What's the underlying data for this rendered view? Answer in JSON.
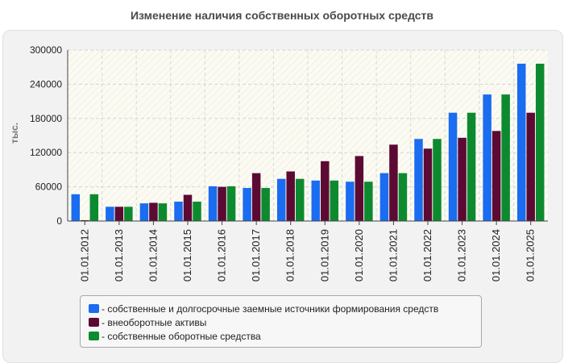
{
  "chart_data": {
    "type": "bar",
    "title": "Изменение наличия собственных оборотных средств",
    "ylabel": "тыс.",
    "xlabel": "",
    "ylim": [
      0,
      300000
    ],
    "yticks": [
      0,
      60000,
      120000,
      180000,
      240000,
      300000
    ],
    "grid": true,
    "legend_position": "bottom",
    "categories": [
      "01.01.2012",
      "01.01.2013",
      "01.01.2014",
      "01.01.2015",
      "01.01.2016",
      "01.01.2017",
      "01.01.2018",
      "01.01.2019",
      "01.01.2020",
      "01.01.2021",
      "01.01.2022",
      "01.01.2023",
      "01.01.2024",
      "01.01.2025"
    ],
    "series": [
      {
        "name": "собственные и долгосрочные заемные источники формирования средств",
        "color": "#1a6cf0",
        "values": [
          47000,
          25000,
          31000,
          34000,
          61000,
          58000,
          74000,
          71000,
          69000,
          84000,
          144000,
          190000,
          222000,
          276000
        ]
      },
      {
        "name": "внеоборотные активы",
        "color": "#5c0a33",
        "values": [
          1500,
          25000,
          32000,
          46000,
          60000,
          84000,
          87000,
          105000,
          114000,
          134000,
          127000,
          146000,
          158000,
          190000
        ]
      },
      {
        "name": "собственные оборотные средства",
        "color": "#0d8a2f",
        "values": [
          47000,
          25000,
          31000,
          34000,
          61000,
          58000,
          74000,
          71000,
          69000,
          84000,
          144000,
          190000,
          222000,
          276000
        ]
      }
    ]
  }
}
